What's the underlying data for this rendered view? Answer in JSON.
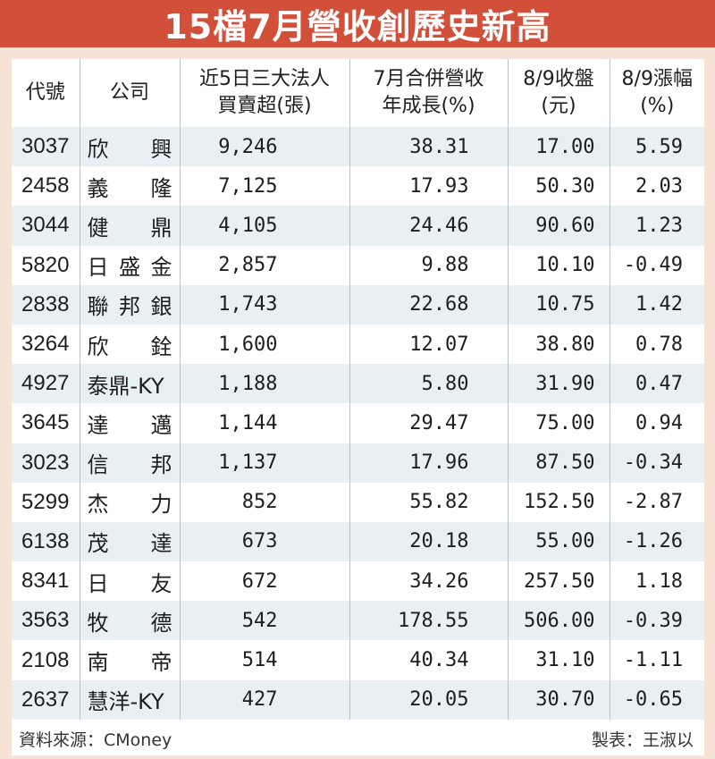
{
  "title": "15檔7月營收創歷史新高",
  "table": {
    "headers": [
      {
        "line1": "代號",
        "line2": ""
      },
      {
        "line1": "公司",
        "line2": ""
      },
      {
        "line1": "近5日三大法人",
        "line2": "買賣超(張)"
      },
      {
        "line1": "7月合併營收",
        "line2": "年成長(%)"
      },
      {
        "line1": "8/9收盤",
        "line2": "(元)"
      },
      {
        "line1": "8/9漲幅",
        "line2": "(%)"
      }
    ],
    "rows": [
      {
        "code": "3037",
        "name": [
          "欣",
          "興"
        ],
        "net_buy": "9,246",
        "yoy": "38.31",
        "close": "17.00",
        "change": "5.59"
      },
      {
        "code": "2458",
        "name": [
          "義",
          "隆"
        ],
        "net_buy": "7,125",
        "yoy": "17.93",
        "close": "50.30",
        "change": "2.03"
      },
      {
        "code": "3044",
        "name": [
          "健",
          "鼎"
        ],
        "net_buy": "4,105",
        "yoy": "24.46",
        "close": "90.60",
        "change": "1.23"
      },
      {
        "code": "5820",
        "name": [
          "日",
          "盛",
          "金"
        ],
        "net_buy": "2,857",
        "yoy": "9.88",
        "close": "10.10",
        "change": "-0.49"
      },
      {
        "code": "2838",
        "name": [
          "聯",
          "邦",
          "銀"
        ],
        "net_buy": "1,743",
        "yoy": "22.68",
        "close": "10.75",
        "change": "1.42"
      },
      {
        "code": "3264",
        "name": [
          "欣",
          "銓"
        ],
        "net_buy": "1,600",
        "yoy": "12.07",
        "close": "38.80",
        "change": "0.78"
      },
      {
        "code": "4927",
        "name": [
          "泰鼎-KY"
        ],
        "net_buy": "1,188",
        "yoy": "5.80",
        "close": "31.90",
        "change": "0.47"
      },
      {
        "code": "3645",
        "name": [
          "達",
          "邁"
        ],
        "net_buy": "1,144",
        "yoy": "29.47",
        "close": "75.00",
        "change": "0.94"
      },
      {
        "code": "3023",
        "name": [
          "信",
          "邦"
        ],
        "net_buy": "1,137",
        "yoy": "17.96",
        "close": "87.50",
        "change": "-0.34"
      },
      {
        "code": "5299",
        "name": [
          "杰",
          "力"
        ],
        "net_buy": "852",
        "yoy": "55.82",
        "close": "152.50",
        "change": "-2.87"
      },
      {
        "code": "6138",
        "name": [
          "茂",
          "達"
        ],
        "net_buy": "673",
        "yoy": "20.18",
        "close": "55.00",
        "change": "-1.26"
      },
      {
        "code": "8341",
        "name": [
          "日",
          "友"
        ],
        "net_buy": "672",
        "yoy": "34.26",
        "close": "257.50",
        "change": "1.18"
      },
      {
        "code": "3563",
        "name": [
          "牧",
          "德"
        ],
        "net_buy": "542",
        "yoy": "178.55",
        "close": "506.00",
        "change": "-0.39"
      },
      {
        "code": "2108",
        "name": [
          "南",
          "帝"
        ],
        "net_buy": "514",
        "yoy": "40.34",
        "close": "31.10",
        "change": "-1.11"
      },
      {
        "code": "2637",
        "name": [
          "慧洋-KY"
        ],
        "net_buy": "427",
        "yoy": "20.05",
        "close": "30.70",
        "change": "-0.65"
      }
    ]
  },
  "footer": {
    "source": "資料來源：CMoney",
    "author": "製表：王淑以"
  },
  "colors": {
    "title_bg": "#d24f3a",
    "page_bg": "#f7e3d6",
    "stripe": "#e8f0f4"
  }
}
